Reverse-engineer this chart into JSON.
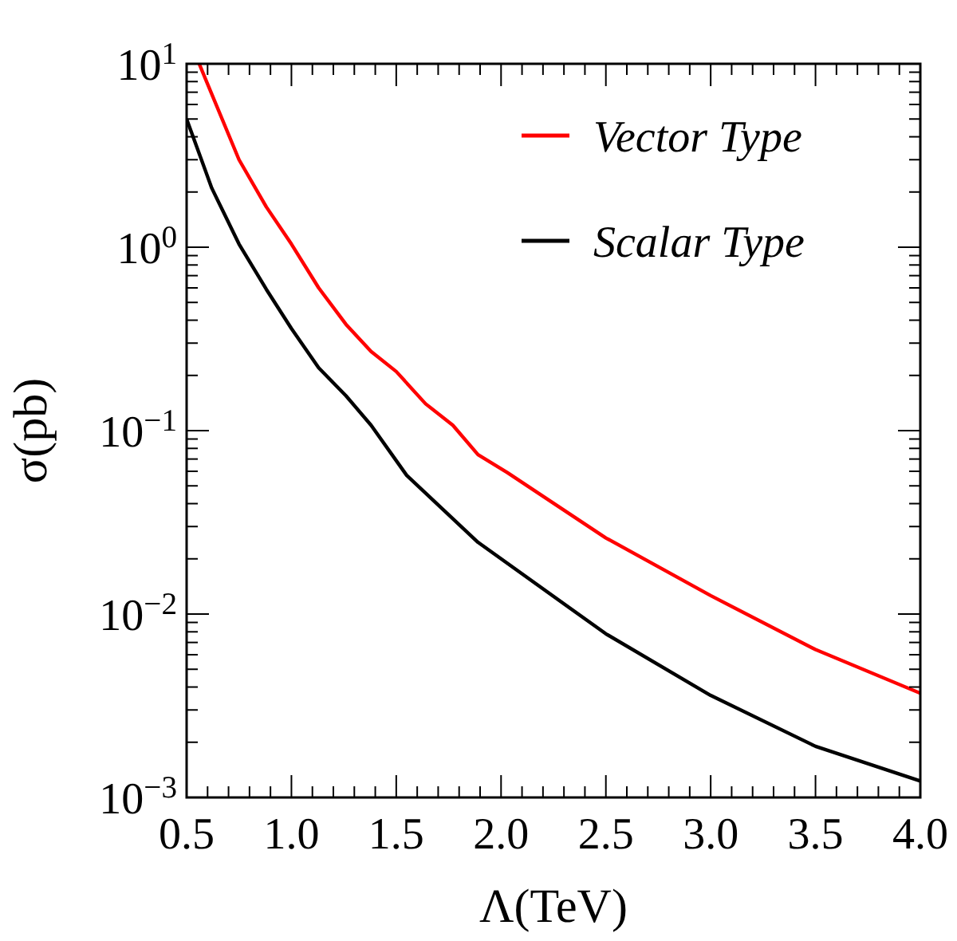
{
  "chart_data": {
    "type": "line",
    "xlabel": "Λ(TeV)",
    "ylabel": "σ(pb)",
    "log": "y",
    "xlim": [
      0.5,
      4.0
    ],
    "ylim": [
      0.001,
      10
    ],
    "xticks": [
      0.5,
      {
        "value": 1,
        "label": "1.0"
      },
      1.5,
      {
        "value": 2,
        "label": "2.0"
      },
      2.5,
      {
        "value": 3,
        "label": "3.0"
      },
      3.5,
      {
        "value": 4,
        "label": "4.0"
      }
    ],
    "yticks": [
      {
        "value": 0.001,
        "label": "10$^{−3}$"
      },
      {
        "value": 0.01,
        "label": "10$^{−2}$"
      },
      {
        "value": 0.1,
        "label": "10$^{−1}$"
      },
      {
        "value": 1,
        "label": "10$^{0}$"
      },
      {
        "value": 10,
        "label": "10$^{1}$"
      }
    ],
    "grid": false,
    "legend": "top right",
    "marker": "none",
    "line_style": "solid",
    "series": [
      {
        "name": "Vector Type",
        "color": "#ff0000",
        "x": [
          0.56,
          0.75,
          0.88,
          1.0,
          1.13,
          1.26,
          1.38,
          1.5,
          1.64,
          1.77,
          1.89,
          2.03,
          2.5,
          3.0,
          3.5,
          4.0
        ],
        "values": [
          10,
          3.0,
          1.66,
          1.04,
          0.6,
          0.38,
          0.27,
          0.21,
          0.14,
          0.107,
          0.074,
          0.059,
          0.026,
          0.0126,
          0.0064,
          0.0037
        ]
      },
      {
        "name": "Scalar Type",
        "color": "#000000",
        "x": [
          0.5,
          0.62,
          0.75,
          0.88,
          1.0,
          1.13,
          1.26,
          1.38,
          1.55,
          1.89,
          2.5,
          3.0,
          3.5,
          4.0
        ],
        "values": [
          5.0,
          2.1,
          1.04,
          0.59,
          0.36,
          0.22,
          0.155,
          0.107,
          0.057,
          0.0246,
          0.0078,
          0.0036,
          0.0019,
          0.00123
        ]
      }
    ]
  }
}
